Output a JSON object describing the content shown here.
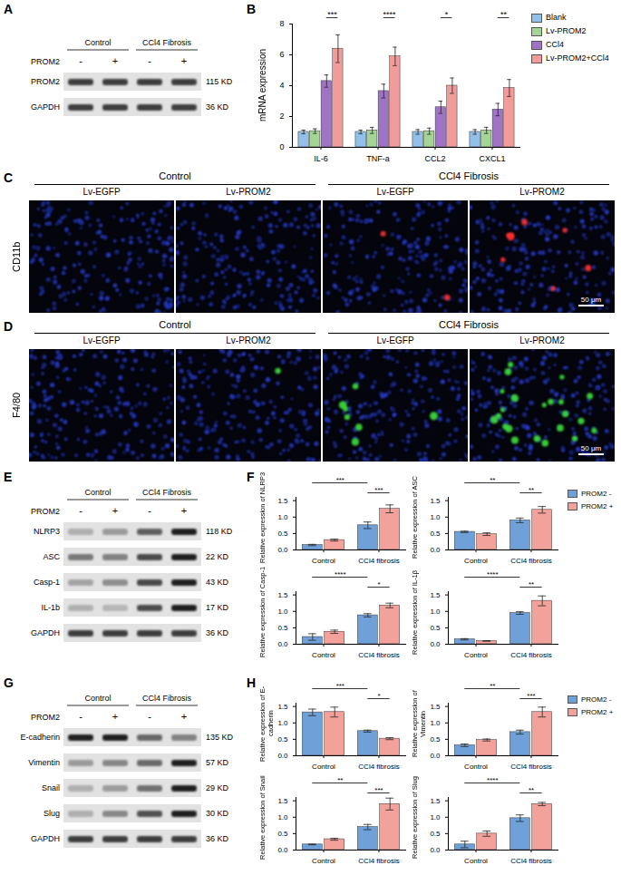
{
  "chart_data": [
    {
      "panel": "B",
      "type": "bar",
      "y_label": "mRNA expression",
      "categories": [
        "IL-6",
        "TNF-a",
        "CCL2",
        "CXCL1"
      ],
      "series": [
        {
          "name": "Blank",
          "color": "#92c0e8",
          "values": [
            1.0,
            1.0,
            1.0,
            1.0
          ],
          "errors": [
            0.12,
            0.12,
            0.15,
            0.15
          ]
        },
        {
          "name": "Lv-PROM2",
          "color": "#a5d596",
          "values": [
            1.05,
            1.1,
            1.05,
            1.1
          ],
          "errors": [
            0.15,
            0.2,
            0.2,
            0.2
          ]
        },
        {
          "name": "CCl4",
          "color": "#a074c4",
          "values": [
            4.3,
            3.65,
            2.6,
            2.45
          ],
          "errors": [
            0.4,
            0.45,
            0.4,
            0.4
          ]
        },
        {
          "name": "Lv-PROM2+CCl4",
          "color": "#f29b9b",
          "values": [
            6.4,
            5.9,
            4.0,
            3.85
          ],
          "errors": [
            0.9,
            0.6,
            0.5,
            0.55
          ]
        }
      ],
      "ylim": [
        0,
        8
      ],
      "yticks": [
        0,
        2,
        4,
        6,
        8
      ],
      "legend": "right",
      "comparisons": [
        {
          "text": "***",
          "category": "IL-6",
          "series": [
            "CCl4",
            "Lv-PROM2+CCl4"
          ]
        },
        {
          "text": "****",
          "category": "TNF-a",
          "series": [
            "CCl4",
            "Lv-PROM2+CCl4"
          ]
        },
        {
          "text": "*",
          "category": "CCL2",
          "series": [
            "CCl4",
            "Lv-PROM2+CCl4"
          ]
        },
        {
          "text": "**",
          "category": "CXCL1",
          "series": [
            "CCl4",
            "Lv-PROM2+CCl4"
          ]
        }
      ]
    },
    {
      "panel": "F",
      "type": "bar",
      "y_label": "Relative expression of NLRP3",
      "categories": [
        "Control",
        "CCl4 fibrosis"
      ],
      "series": [
        {
          "name": "PROM2 -",
          "color": "#6fa0d8",
          "values": [
            0.15,
            0.75
          ],
          "errors": [
            0.02,
            0.1
          ]
        },
        {
          "name": "PROM2 +",
          "color": "#f2a29b",
          "values": [
            0.3,
            1.25
          ],
          "errors": [
            0.03,
            0.12
          ]
        }
      ],
      "ylim": [
        0,
        1.6
      ],
      "yticks": [
        {
          "value": 0,
          "label": "0.0"
        },
        {
          "value": 0.5,
          "label": "0.5"
        },
        {
          "value": 1,
          "label": "1.0"
        },
        {
          "value": 1.5,
          "label": "1.5"
        }
      ],
      "legend": "right",
      "comparisons": [
        {
          "text": "***",
          "series": "PROM2 -"
        },
        {
          "text": "***",
          "category": "CCl4 fibrosis"
        }
      ]
    },
    {
      "panel": "F",
      "type": "bar",
      "y_label": "Relative expression of ASC",
      "categories": [
        "Control",
        "CCl4 fibrosis"
      ],
      "series": [
        {
          "name": "PROM2 -",
          "color": "#6fa0d8",
          "values": [
            0.55,
            0.9
          ],
          "errors": [
            0.02,
            0.07
          ]
        },
        {
          "name": "PROM2 +",
          "color": "#f2a29b",
          "values": [
            0.48,
            1.22
          ],
          "errors": [
            0.04,
            0.1
          ]
        }
      ],
      "ylim": [
        0,
        1.6
      ],
      "yticks": [
        {
          "value": 0,
          "label": "0.0"
        },
        {
          "value": 0.5,
          "label": "0.5"
        },
        {
          "value": 1,
          "label": "1.0"
        },
        {
          "value": 1.5,
          "label": "1.5"
        }
      ],
      "comparisons": [
        {
          "text": "**",
          "series": "PROM2 -"
        },
        {
          "text": "**",
          "category": "CCl4 fibrosis"
        }
      ]
    },
    {
      "panel": "F",
      "type": "bar",
      "y_label": "Relative expression of Casp-1",
      "categories": [
        "Control",
        "CCl4 fibrosis"
      ],
      "series": [
        {
          "name": "PROM2 -",
          "color": "#6fa0d8",
          "values": [
            0.22,
            0.88
          ],
          "errors": [
            0.1,
            0.05
          ]
        },
        {
          "name": "PROM2 +",
          "color": "#f2a29b",
          "values": [
            0.38,
            1.18
          ],
          "errors": [
            0.05,
            0.07
          ]
        }
      ],
      "ylim": [
        0,
        1.6
      ],
      "yticks": [
        {
          "value": 0,
          "label": "0.0"
        },
        {
          "value": 0.5,
          "label": "0.5"
        },
        {
          "value": 1,
          "label": "1.0"
        },
        {
          "value": 1.5,
          "label": "1.5"
        }
      ],
      "comparisons": [
        {
          "text": "****",
          "series": "PROM2 -"
        },
        {
          "text": "*",
          "category": "CCl4 fibrosis"
        }
      ]
    },
    {
      "panel": "F",
      "type": "bar",
      "y_label": "Relative expression of IL-1β",
      "categories": [
        "Control",
        "CCl4 fibrosis"
      ],
      "series": [
        {
          "name": "PROM2 -",
          "color": "#6fa0d8",
          "values": [
            0.15,
            0.95
          ],
          "errors": [
            0.02,
            0.04
          ]
        },
        {
          "name": "PROM2 +",
          "color": "#f2a29b",
          "values": [
            0.1,
            1.32
          ],
          "errors": [
            0.01,
            0.15
          ]
        }
      ],
      "ylim": [
        0,
        1.6
      ],
      "yticks": [
        {
          "value": 0,
          "label": "0.0"
        },
        {
          "value": 0.5,
          "label": "0.5"
        },
        {
          "value": 1,
          "label": "1.0"
        },
        {
          "value": 1.5,
          "label": "1.5"
        }
      ],
      "comparisons": [
        {
          "text": "****",
          "series": "PROM2 -"
        },
        {
          "text": "**",
          "category": "CCl4 fibrosis"
        }
      ]
    },
    {
      "panel": "H",
      "type": "bar",
      "y_label": "Relative expression of E-cadherin",
      "categories": [
        "Control",
        "CCl4 fibrosis"
      ],
      "series": [
        {
          "name": "PROM2 -",
          "color": "#6fa0d8",
          "values": [
            1.32,
            0.75
          ],
          "errors": [
            0.1,
            0.03
          ]
        },
        {
          "name": "PROM2 +",
          "color": "#f2a29b",
          "values": [
            1.33,
            0.52
          ],
          "errors": [
            0.15,
            0.03
          ]
        }
      ],
      "ylim": [
        0,
        1.6
      ],
      "yticks": [
        {
          "value": 0,
          "label": "0.0"
        },
        {
          "value": 0.5,
          "label": "0.5"
        },
        {
          "value": 1,
          "label": "1.0"
        },
        {
          "value": 1.5,
          "label": "1.5"
        }
      ],
      "legend": "right",
      "comparisons": [
        {
          "text": "***",
          "series": "PROM2 -"
        },
        {
          "text": "*",
          "category": "CCl4 fibrosis"
        }
      ]
    },
    {
      "panel": "H",
      "type": "bar",
      "y_label": "Relative expression of Vimentin",
      "categories": [
        "Control",
        "CCl4 fibrosis"
      ],
      "series": [
        {
          "name": "PROM2 -",
          "color": "#6fa0d8",
          "values": [
            0.32,
            0.72
          ],
          "errors": [
            0.04,
            0.06
          ]
        },
        {
          "name": "PROM2 +",
          "color": "#f2a29b",
          "values": [
            0.48,
            1.33
          ],
          "errors": [
            0.03,
            0.15
          ]
        }
      ],
      "ylim": [
        0,
        1.6
      ],
      "yticks": [
        {
          "value": 0,
          "label": "0.0"
        },
        {
          "value": 0.5,
          "label": "0.5"
        },
        {
          "value": 1,
          "label": "1.0"
        },
        {
          "value": 1.5,
          "label": "1.5"
        }
      ],
      "comparisons": [
        {
          "text": "**",
          "series": "PROM2 -"
        },
        {
          "text": "***",
          "category": "CCl4 fibrosis"
        }
      ]
    },
    {
      "panel": "H",
      "type": "bar",
      "y_label": "Relative expression of Snail",
      "categories": [
        "Control",
        "CCl4 fibrosis"
      ],
      "series": [
        {
          "name": "PROM2 -",
          "color": "#6fa0d8",
          "values": [
            0.17,
            0.7
          ],
          "errors": [
            0.01,
            0.08
          ]
        },
        {
          "name": "PROM2 +",
          "color": "#f2a29b",
          "values": [
            0.33,
            1.4
          ],
          "errors": [
            0.03,
            0.18
          ]
        }
      ],
      "ylim": [
        0,
        1.6
      ],
      "yticks": [
        {
          "value": 0,
          "label": "0.0"
        },
        {
          "value": 0.5,
          "label": "0.5"
        },
        {
          "value": 1,
          "label": "1.0"
        },
        {
          "value": 1.5,
          "label": "1.5"
        }
      ],
      "comparisons": [
        {
          "text": "**",
          "series": "PROM2 -"
        },
        {
          "text": "***",
          "category": "CCl4 fibrosis"
        }
      ]
    },
    {
      "panel": "H",
      "type": "bar",
      "y_label": "Relative expression of Slug",
      "categories": [
        "Control",
        "CCl4 fibrosis"
      ],
      "series": [
        {
          "name": "PROM2 -",
          "color": "#6fa0d8",
          "values": [
            0.17,
            0.97
          ],
          "errors": [
            0.1,
            0.1
          ]
        },
        {
          "name": "PROM2 +",
          "color": "#f2a29b",
          "values": [
            0.5,
            1.4
          ],
          "errors": [
            0.08,
            0.05
          ]
        }
      ],
      "ylim": [
        0,
        1.6
      ],
      "yticks": [
        {
          "value": 0,
          "label": "0.0"
        },
        {
          "value": 0.5,
          "label": "0.5"
        },
        {
          "value": 1,
          "label": "1.0"
        },
        {
          "value": 1.5,
          "label": "1.5"
        }
      ],
      "comparisons": [
        {
          "text": "****",
          "series": "PROM2 -"
        },
        {
          "text": "**",
          "category": "CCl4 fibrosis"
        }
      ]
    }
  ],
  "blots": [
    {
      "panel": "A",
      "groups": [
        "Control",
        "CCl4 Fibrosis"
      ],
      "treatment": "PROM2",
      "lanes": [
        "-",
        "+",
        "-",
        "+"
      ],
      "rows": [
        {
          "name": "PROM2",
          "size": "115 KD"
        },
        {
          "name": "GAPDH",
          "size": "36 KD"
        }
      ]
    },
    {
      "panel": "E",
      "groups": [
        "Control",
        "CCl4 Fibrosis"
      ],
      "treatment": "PROM2",
      "lanes": [
        "-",
        "+",
        "-",
        "+"
      ],
      "rows": [
        {
          "name": "NLRP3",
          "size": "118 KD"
        },
        {
          "name": "ASC",
          "size": "22 KD"
        },
        {
          "name": "Casp-1",
          "size": "43 KD"
        },
        {
          "name": "IL-1b",
          "size": "17 KD"
        },
        {
          "name": "GAPDH",
          "size": "36 KD"
        }
      ]
    },
    {
      "panel": "G",
      "groups": [
        "Control",
        "CCl4 Fibrosis"
      ],
      "treatment": "PROM2",
      "lanes": [
        "-",
        "+",
        "-",
        "+"
      ],
      "rows": [
        {
          "name": "E-cadherin",
          "size": "135 KD"
        },
        {
          "name": "Vimentin",
          "size": "57 KD"
        },
        {
          "name": "Snail",
          "size": "29 KD"
        },
        {
          "name": "Slug",
          "size": "30 KD"
        },
        {
          "name": "GAPDH",
          "size": "36 KD"
        }
      ]
    }
  ],
  "micrographs": [
    {
      "panel": "C",
      "stain": "CD11b",
      "color": "#ff3030",
      "groups": [
        "Control",
        "CCl4 Fibrosis"
      ],
      "conditions": [
        "Lv-EGFP",
        "Lv-PROM2"
      ],
      "scale_bar": "50 μm"
    },
    {
      "panel": "D",
      "stain": "F4/80",
      "color": "#3ee03e",
      "groups": [
        "Control",
        "CCl4 Fibrosis"
      ],
      "conditions": [
        "Lv-EGFP",
        "Lv-PROM2"
      ],
      "scale_bar": "50 μm"
    }
  ]
}
